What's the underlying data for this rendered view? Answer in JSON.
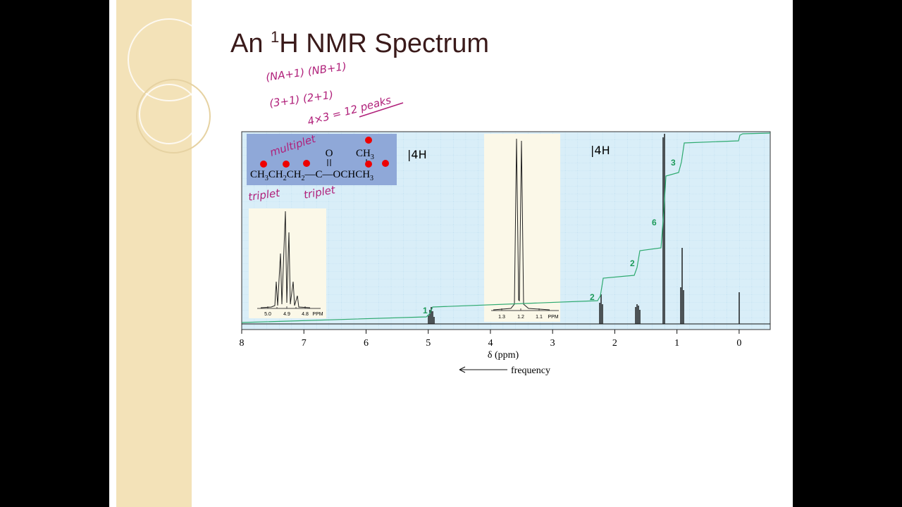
{
  "slide": {
    "title": {
      "prefix": "An ",
      "sup": "1",
      "main": "H NMR Spectrum"
    },
    "notes": {
      "line1": "(NA+1)  (NB+1)",
      "line2": "(3+1)    (2+1)",
      "line3": "4×3 = 12 peaks"
    }
  },
  "spectrum": {
    "xlim": [
      8,
      -0.5
    ],
    "xticks": [
      8,
      7,
      6,
      5,
      4,
      3,
      2,
      1,
      0
    ],
    "xlabel": "δ (ppm)",
    "direction": "frequency",
    "integrals": [
      1,
      2,
      2,
      6,
      3
    ],
    "structure": {
      "carbonyl": "O",
      "branch": [
        "CH",
        "3"
      ],
      "chain": [
        "CH",
        "3",
        "CH",
        "2",
        "CH",
        "2",
        "—C—OCHCH",
        "3"
      ]
    },
    "annotations": {
      "multiplet": "multiplet",
      "triplet_left": "triplet",
      "triplet_mid": "triplet",
      "h_left": "|4H",
      "h_right": "|4H"
    },
    "inset_left": {
      "ticks": [
        {
          "value": 5,
          "label": "5.0"
        },
        4.9,
        4.8
      ],
      "unit": "PPM"
    },
    "inset_right": {
      "ticks": [
        1.3,
        1.2,
        1.1
      ],
      "unit": "PPM"
    }
  }
}
